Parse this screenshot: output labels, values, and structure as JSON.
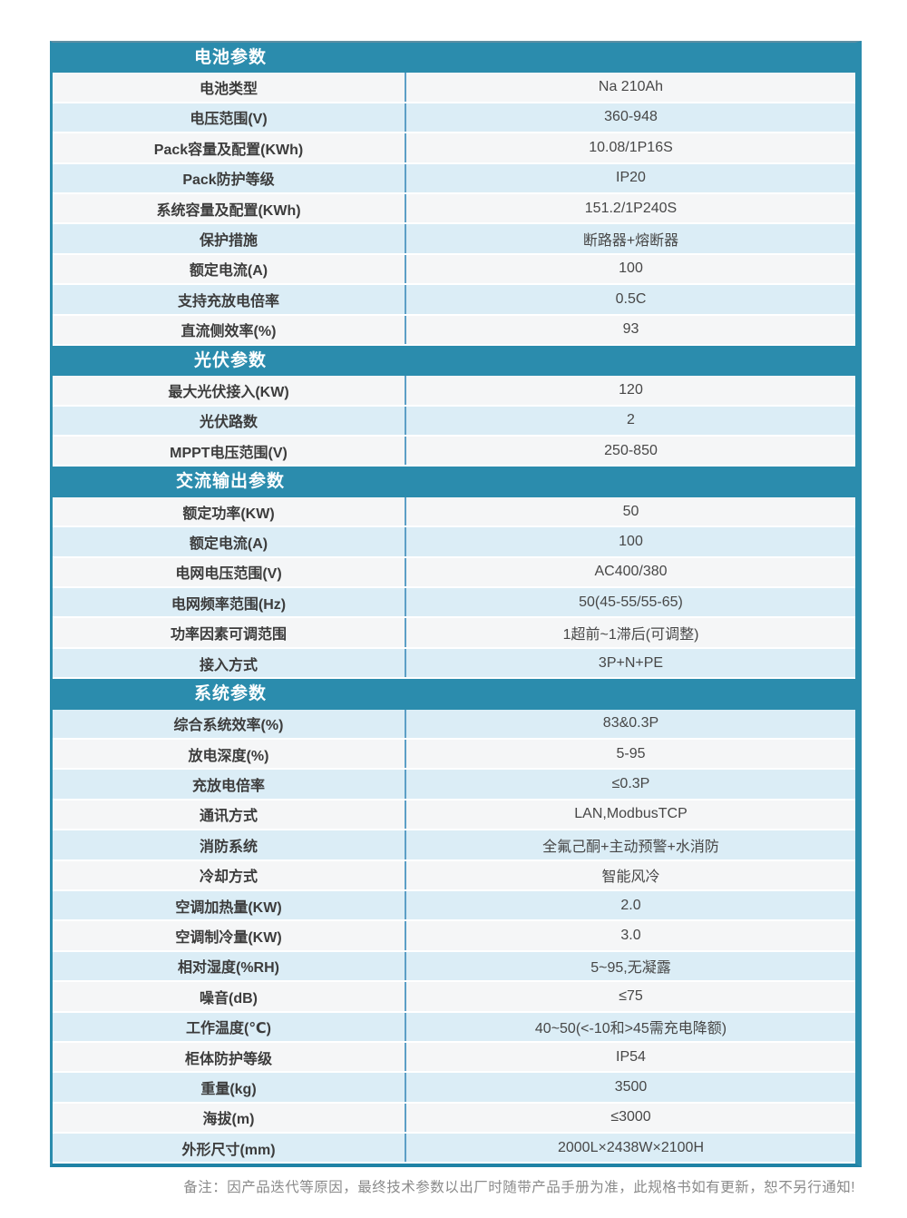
{
  "colors": {
    "header_teal": "#2b8cad",
    "border_teal_dark": "#1f82a5",
    "row_white": "#f5f6f7",
    "row_blue": "#dbedf6",
    "column_divider_blue": "#5c9fc6",
    "label_text": "#3c3c3c",
    "value_text": "#474747",
    "footer_text": "#8a8a8a"
  },
  "table": {
    "sections": [
      {
        "id": "battery",
        "title": "电池参数",
        "start_shade": "white",
        "rows": [
          {
            "label": "电池类型",
            "value": "Na 210Ah"
          },
          {
            "label": "电压范围(V)",
            "value": "360-948"
          },
          {
            "label": "Pack容量及配置(KWh)",
            "value": "10.08/1P16S"
          },
          {
            "label": "Pack防护等级",
            "value": "IP20"
          },
          {
            "label": "系统容量及配置(KWh)",
            "value": "151.2/1P240S"
          },
          {
            "label": "保护措施",
            "value": "断路器+熔断器"
          },
          {
            "label": "额定电流(A)",
            "value": "100"
          },
          {
            "label": "支持充放电倍率",
            "value": "0.5C"
          },
          {
            "label": "直流侧效率(%)",
            "value": "93"
          }
        ]
      },
      {
        "id": "pv",
        "title": "光伏参数",
        "start_shade": "white",
        "rows": [
          {
            "label": "最大光伏接入(KW)",
            "value": "120"
          },
          {
            "label": "光伏路数",
            "value": "2"
          },
          {
            "label": "MPPT电压范围(V)",
            "value": "250-850"
          }
        ]
      },
      {
        "id": "ac-output",
        "title": "交流输出参数",
        "start_shade": "white",
        "rows": [
          {
            "label": "额定功率(KW)",
            "value": "50"
          },
          {
            "label": "额定电流(A)",
            "value": "100"
          },
          {
            "label": "电网电压范围(V)",
            "value": "AC400/380"
          },
          {
            "label": "电网频率范围(Hz)",
            "value": "50(45-55/55-65)"
          },
          {
            "label": "功率因素可调范围",
            "value": "1超前~1滞后(可调整)"
          },
          {
            "label": "接入方式",
            "value": "3P+N+PE"
          }
        ]
      },
      {
        "id": "system",
        "title": "系统参数",
        "start_shade": "blue",
        "rows": [
          {
            "label": "综合系统效率(%)",
            "value": "83&0.3P"
          },
          {
            "label": "放电深度(%)",
            "value": "5-95"
          },
          {
            "label": "充放电倍率",
            "value": "≤0.3P"
          },
          {
            "label": "通讯方式",
            "value": "LAN,ModbusTCP"
          },
          {
            "label": "消防系统",
            "value": "全氟己酮+主动预警+水消防"
          },
          {
            "label": "冷却方式",
            "value": "智能风冷"
          },
          {
            "label": "空调加热量(KW)",
            "value": "2.0"
          },
          {
            "label": "空调制冷量(KW)",
            "value": "3.0"
          },
          {
            "label": "相对湿度(%RH)",
            "value": "5~95,无凝露"
          },
          {
            "label": "噪音(dB)",
            "value": "≤75"
          },
          {
            "label": "工作温度(℃)",
            "value": "40~50(<-10和>45需充电降额)"
          },
          {
            "label": "柜体防护等级",
            "value": "IP54"
          },
          {
            "label": "重量(kg)",
            "value": "3500"
          },
          {
            "label": "海拔(m)",
            "value": "≤3000"
          },
          {
            "label": "外形尺寸(mm)",
            "value": "2000L×2438W×2100H"
          }
        ]
      }
    ]
  },
  "footer": {
    "note": "备注：因产品迭代等原因，最终技术参数以出厂时随带产品手册为准，此规格书如有更新，恕不另行通知!"
  }
}
